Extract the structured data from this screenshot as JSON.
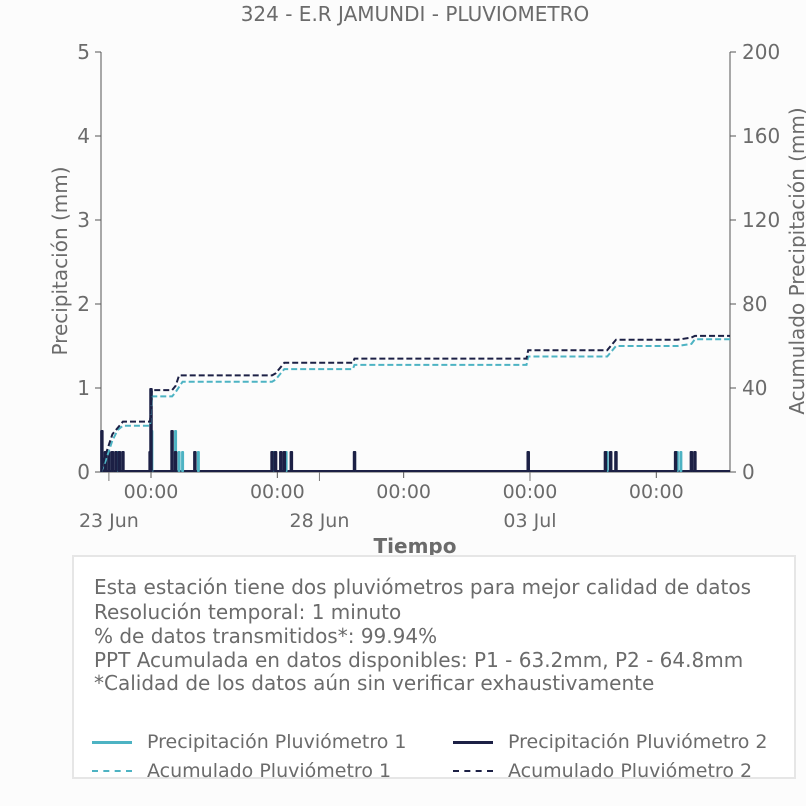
{
  "chart_data": {
    "type": "line",
    "title": "324 - E.R JAMUNDI - PLUVIOMETRO",
    "xlabel": "Tiempo",
    "ylabel_left": "Precipitación (mm)",
    "ylabel_right": "Acumulado Precipitación (mm)",
    "ylim_left": [
      0,
      5
    ],
    "ylim_right": [
      0,
      200
    ],
    "yticks_left": [
      "0",
      "1",
      "2",
      "3",
      "4",
      "5"
    ],
    "yticks_right": [
      "0",
      "40",
      "80",
      "120",
      "160",
      "200"
    ],
    "xlim": [
      "2023-06-22T19:30",
      "2023-07-07T18:00"
    ],
    "xticks": [
      {
        "x": "2023-06-24T00:00",
        "label": "00:00"
      },
      {
        "x": "2023-06-27T00:00",
        "label": "00:00"
      },
      {
        "x": "2023-06-30T00:00",
        "label": "00:00"
      },
      {
        "x": "2023-07-03T00:00",
        "label": "00:00"
      },
      {
        "x": "2023-07-06T00:00",
        "label": "00:00"
      }
    ],
    "date_labels": [
      {
        "x": "2023-06-23T00:00",
        "label": "23 Jun"
      },
      {
        "x": "2023-06-28T00:00",
        "label": "28 Jun"
      },
      {
        "x": "2023-07-03T00:00",
        "label": "03 Jul"
      }
    ],
    "series": [
      {
        "name": "Precipitación Pluviómetro 1",
        "axis": "left",
        "style": "bars",
        "color": "#4db3c3",
        "points": [
          [
            "2023-06-23T02:00",
            0.25
          ],
          [
            "2023-06-23T05:00",
            0.25
          ],
          [
            "2023-06-23T08:00",
            0.25
          ],
          [
            "2023-06-24T00:00",
            0.25
          ],
          [
            "2023-06-24T00:30",
            0.5
          ],
          [
            "2023-06-24T12:00",
            0.25
          ],
          [
            "2023-06-24T14:00",
            0.5
          ],
          [
            "2023-06-24T16:00",
            0.25
          ],
          [
            "2023-06-24T18:00",
            0.25
          ],
          [
            "2023-06-25T03:00",
            0.25
          ],
          [
            "2023-06-26T22:00",
            0.25
          ],
          [
            "2023-06-27T02:00",
            0.25
          ],
          [
            "2023-06-27T05:00",
            0.25
          ],
          [
            "2023-06-28T20:00",
            0.25
          ],
          [
            "2023-07-02T23:00",
            0.25
          ],
          [
            "2023-07-04T20:00",
            0.25
          ],
          [
            "2023-07-05T01:00",
            0.25
          ],
          [
            "2023-07-06T12:00",
            0.25
          ],
          [
            "2023-07-06T14:00",
            0.25
          ],
          [
            "2023-07-06T20:00",
            0.25
          ]
        ]
      },
      {
        "name": "Precipitación Pluviómetro 2",
        "axis": "left",
        "style": "bars",
        "color": "#1c2045",
        "points": [
          [
            "2023-06-22T20:00",
            0.5
          ],
          [
            "2023-06-22T22:00",
            0.25
          ],
          [
            "2023-06-23T00:00",
            0.25
          ],
          [
            "2023-06-23T02:00",
            0.25
          ],
          [
            "2023-06-23T04:00",
            0.25
          ],
          [
            "2023-06-23T06:00",
            0.25
          ],
          [
            "2023-06-23T08:00",
            0.25
          ],
          [
            "2023-06-23T23:30",
            0.25
          ],
          [
            "2023-06-24T00:00",
            1.0
          ],
          [
            "2023-06-24T12:00",
            0.5
          ],
          [
            "2023-06-24T14:00",
            0.25
          ],
          [
            "2023-06-25T01:00",
            0.25
          ],
          [
            "2023-06-26T21:00",
            0.25
          ],
          [
            "2023-06-26T23:00",
            0.25
          ],
          [
            "2023-06-27T02:00",
            0.25
          ],
          [
            "2023-06-27T04:00",
            0.25
          ],
          [
            "2023-06-27T08:00",
            0.25
          ],
          [
            "2023-06-28T20:00",
            0.25
          ],
          [
            "2023-07-02T23:00",
            0.25
          ],
          [
            "2023-07-04T19:00",
            0.25
          ],
          [
            "2023-07-04T22:00",
            0.25
          ],
          [
            "2023-07-05T01:00",
            0.25
          ],
          [
            "2023-07-06T11:00",
            0.25
          ],
          [
            "2023-07-06T20:00",
            0.25
          ],
          [
            "2023-07-06T22:00",
            0.25
          ]
        ]
      },
      {
        "name": "Acumulado Pluviómetro 1",
        "axis": "right",
        "style": "dashed",
        "color": "#4db3c3",
        "points": [
          [
            "2023-06-22T19:30",
            0
          ],
          [
            "2023-06-22T22:00",
            5
          ],
          [
            "2023-06-23T02:00",
            15
          ],
          [
            "2023-06-23T05:00",
            20
          ],
          [
            "2023-06-23T08:00",
            22
          ],
          [
            "2023-06-23T23:30",
            22
          ],
          [
            "2023-06-24T00:30",
            36
          ],
          [
            "2023-06-24T12:00",
            36
          ],
          [
            "2023-06-24T14:00",
            38
          ],
          [
            "2023-06-24T18:00",
            43
          ],
          [
            "2023-06-26T21:00",
            43
          ],
          [
            "2023-06-26T23:00",
            44
          ],
          [
            "2023-06-27T04:00",
            49
          ],
          [
            "2023-06-28T19:00",
            49
          ],
          [
            "2023-06-28T20:00",
            51
          ],
          [
            "2023-07-02T22:00",
            51
          ],
          [
            "2023-07-02T23:00",
            55
          ],
          [
            "2023-07-04T20:00",
            55
          ],
          [
            "2023-07-05T01:00",
            60
          ],
          [
            "2023-07-06T12:00",
            60
          ],
          [
            "2023-07-06T20:00",
            61
          ],
          [
            "2023-07-06T22:00",
            63.2
          ],
          [
            "2023-07-07T18:00",
            63.2
          ]
        ]
      },
      {
        "name": "Acumulado Pluviómetro 2",
        "axis": "right",
        "style": "dashed",
        "color": "#1c2045",
        "points": [
          [
            "2023-06-22T19:30",
            0
          ],
          [
            "2023-06-22T22:00",
            8
          ],
          [
            "2023-06-23T02:00",
            18
          ],
          [
            "2023-06-23T05:00",
            21
          ],
          [
            "2023-06-23T08:00",
            24
          ],
          [
            "2023-06-23T23:30",
            24
          ],
          [
            "2023-06-24T00:30",
            39
          ],
          [
            "2023-06-24T12:00",
            39
          ],
          [
            "2023-06-24T14:00",
            41
          ],
          [
            "2023-06-24T16:00",
            46
          ],
          [
            "2023-06-26T21:00",
            46
          ],
          [
            "2023-06-26T23:00",
            47
          ],
          [
            "2023-06-27T04:00",
            52
          ],
          [
            "2023-06-28T19:00",
            52
          ],
          [
            "2023-06-28T20:00",
            54
          ],
          [
            "2023-07-02T22:00",
            54
          ],
          [
            "2023-07-02T23:00",
            58
          ],
          [
            "2023-07-04T20:00",
            58
          ],
          [
            "2023-07-05T01:00",
            63
          ],
          [
            "2023-07-06T12:00",
            63
          ],
          [
            "2023-07-06T20:00",
            64
          ],
          [
            "2023-07-06T22:00",
            64.8
          ],
          [
            "2023-07-07T18:00",
            64.8
          ]
        ]
      }
    ]
  },
  "info": {
    "lines": [
      "Esta estación tiene dos pluviómetros para mejor calidad de datos",
      "Resolución temporal: 1 minuto",
      "% de datos transmitidos*: 99.94%",
      "PPT Acumulada en datos disponibles: P1 - 63.2mm, P2 - 64.8mm",
      "*Calidad de los datos aún sin verificar exhaustivamente"
    ]
  },
  "legend": [
    {
      "label": "Precipitación Pluviómetro 1",
      "color": "#4db3c3",
      "style": "solid"
    },
    {
      "label": "Precipitación Pluviómetro 2",
      "color": "#1c2045",
      "style": "solid"
    },
    {
      "label": "Acumulado Pluviómetro 1",
      "color": "#4db3c3",
      "style": "dashed"
    },
    {
      "label": "Acumulado Pluviómetro 2",
      "color": "#1c2045",
      "style": "dashed"
    }
  ]
}
